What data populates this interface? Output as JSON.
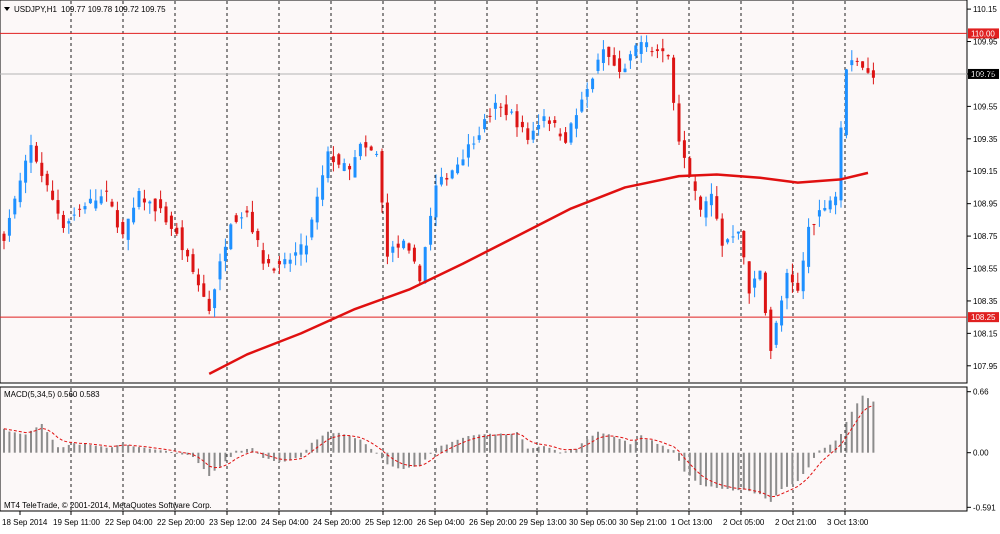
{
  "header": {
    "symbol": "USDJPY,H1",
    "ohlc": "109.77 109.78 109.72 109.75",
    "menu_arrow_icon": "triangle-down-icon"
  },
  "macd_header": "MACD(5,34,5) 0.560 0.583",
  "copyright": "MT4 TeleTrade, © 2001-2014, MetaQuotes Software Corp.",
  "colors": {
    "background": "#ffffff",
    "plot_background": "#fcf8f8",
    "bull_candle": "#1e90ff",
    "bear_candle": "#dc1414",
    "moving_average": "#e01010",
    "horizontal_line": "#e02020",
    "histogram": "#8c8c8c",
    "signal_line": "#e01010",
    "grid": "#1e1e1e"
  },
  "chart_data": [
    {
      "type": "candlestick",
      "symbol": "USDJPY",
      "timeframe": "H1",
      "ylim": [
        107.85,
        110.2
      ],
      "y_ticks": [
        "110.15",
        "109.95",
        "109.75",
        "109.55",
        "109.35",
        "109.15",
        "108.95",
        "108.75",
        "108.55",
        "108.35",
        "108.15",
        "107.95"
      ],
      "x_ticks": [
        "18 Sep 2014",
        "19 Sep 11:00",
        "22 Sep 04:00",
        "22 Sep 20:00",
        "23 Sep 12:00",
        "24 Sep 04:00",
        "24 Sep 20:00",
        "25 Sep 12:00",
        "26 Sep 04:00",
        "26 Sep 20:00",
        "29 Sep 13:00",
        "30 Sep 05:00",
        "30 Sep 21:00",
        "1 Oct 13:00",
        "2 Oct 05:00",
        "2 Oct 21:00",
        "3 Oct 13:00"
      ],
      "horizontal_lines": [
        {
          "value": 110.0,
          "label": "110.00"
        },
        {
          "value": 108.25,
          "label": "108.25"
        }
      ],
      "current_price": {
        "value": 109.75,
        "label": "109.75"
      },
      "price_path": [
        [
          0,
          108.75
        ],
        [
          5,
          109.3
        ],
        [
          8,
          109.05
        ],
        [
          11,
          108.82
        ],
        [
          15,
          108.95
        ],
        [
          19,
          109.0
        ],
        [
          22,
          108.75
        ],
        [
          25,
          109.0
        ],
        [
          29,
          108.9
        ],
        [
          32,
          108.75
        ],
        [
          38,
          108.3
        ],
        [
          42,
          108.85
        ],
        [
          45,
          108.9
        ],
        [
          48,
          108.6
        ],
        [
          51,
          108.55
        ],
        [
          56,
          108.7
        ],
        [
          60,
          109.25
        ],
        [
          64,
          109.15
        ],
        [
          66,
          109.3
        ],
        [
          69,
          109.25
        ],
        [
          71,
          108.65
        ],
        [
          74,
          108.7
        ],
        [
          77,
          108.5
        ],
        [
          80,
          109.05
        ],
        [
          84,
          109.2
        ],
        [
          88,
          109.4
        ],
        [
          91,
          109.55
        ],
        [
          94,
          109.5
        ],
        [
          97,
          109.35
        ],
        [
          100,
          109.5
        ],
        [
          104,
          109.35
        ],
        [
          108,
          109.65
        ],
        [
          111,
          109.9
        ],
        [
          114,
          109.75
        ],
        [
          116,
          109.85
        ],
        [
          118,
          109.95
        ],
        [
          120,
          109.9
        ],
        [
          123,
          109.85
        ],
        [
          125,
          109.35
        ],
        [
          127,
          109.1
        ],
        [
          129,
          108.9
        ],
        [
          131,
          109.0
        ],
        [
          133,
          108.7
        ],
        [
          136,
          108.8
        ],
        [
          138,
          108.4
        ],
        [
          140,
          108.55
        ],
        [
          142,
          108.05
        ],
        [
          145,
          108.5
        ],
        [
          147,
          108.4
        ],
        [
          149,
          108.8
        ],
        [
          152,
          108.95
        ],
        [
          154,
          109.0
        ],
        [
          156,
          109.8
        ],
        [
          158,
          109.85
        ],
        [
          160,
          109.75
        ]
      ],
      "moving_average": [
        [
          38,
          107.9
        ],
        [
          45,
          108.02
        ],
        [
          55,
          108.15
        ],
        [
          65,
          108.3
        ],
        [
          75,
          108.42
        ],
        [
          85,
          108.58
        ],
        [
          95,
          108.75
        ],
        [
          105,
          108.92
        ],
        [
          115,
          109.05
        ],
        [
          125,
          109.12
        ],
        [
          132,
          109.13
        ],
        [
          140,
          109.11
        ],
        [
          147,
          109.08
        ],
        [
          155,
          109.1
        ],
        [
          160,
          109.14
        ]
      ]
    },
    {
      "type": "bar",
      "name": "MACD(5,34,5)",
      "ylim": [
        -0.62,
        0.7
      ],
      "y_ticks": [
        "0.66",
        "0.00",
        "-0.591"
      ],
      "histogram_path": [
        [
          0,
          0.25
        ],
        [
          4,
          0.2
        ],
        [
          7,
          0.32
        ],
        [
          10,
          0.05
        ],
        [
          13,
          0.1
        ],
        [
          16,
          0.08
        ],
        [
          19,
          0.05
        ],
        [
          22,
          0.1
        ],
        [
          26,
          0.05
        ],
        [
          29,
          0.02
        ],
        [
          32,
          0.0
        ],
        [
          35,
          -0.05
        ],
        [
          38,
          -0.25
        ],
        [
          40,
          -0.15
        ],
        [
          43,
          0.02
        ],
        [
          46,
          0.05
        ],
        [
          48,
          -0.05
        ],
        [
          51,
          -0.1
        ],
        [
          55,
          -0.05
        ],
        [
          57,
          0.1
        ],
        [
          60,
          0.22
        ],
        [
          63,
          0.2
        ],
        [
          66,
          0.15
        ],
        [
          68,
          0.05
        ],
        [
          71,
          -0.12
        ],
        [
          74,
          -0.18
        ],
        [
          77,
          -0.15
        ],
        [
          80,
          0.05
        ],
        [
          83,
          0.12
        ],
        [
          86,
          0.18
        ],
        [
          89,
          0.2
        ],
        [
          92,
          0.2
        ],
        [
          95,
          0.22
        ],
        [
          97,
          0.05
        ],
        [
          100,
          0.08
        ],
        [
          103,
          0.0
        ],
        [
          106,
          0.05
        ],
        [
          110,
          0.23
        ],
        [
          113,
          0.18
        ],
        [
          116,
          0.1
        ],
        [
          118,
          0.18
        ],
        [
          121,
          0.1
        ],
        [
          124,
          0.02
        ],
        [
          126,
          -0.2
        ],
        [
          129,
          -0.35
        ],
        [
          133,
          -0.4
        ],
        [
          137,
          -0.4
        ],
        [
          140,
          -0.45
        ],
        [
          142,
          -0.53
        ],
        [
          144,
          -0.4
        ],
        [
          147,
          -0.3
        ],
        [
          149,
          -0.15
        ],
        [
          151,
          0.02
        ],
        [
          153,
          0.08
        ],
        [
          155,
          0.2
        ],
        [
          157,
          0.45
        ],
        [
          159,
          0.62
        ],
        [
          161,
          0.55
        ]
      ]
    }
  ]
}
